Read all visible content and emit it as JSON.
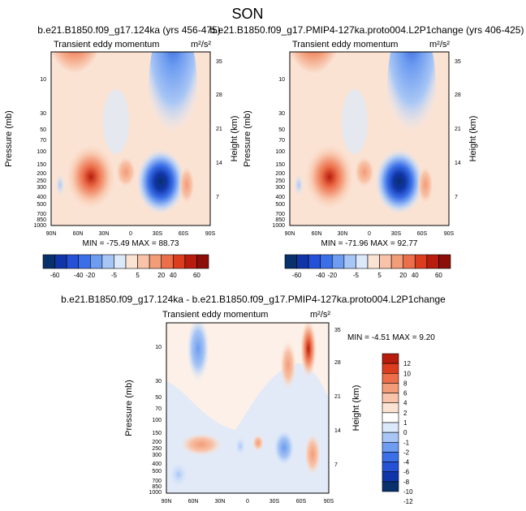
{
  "page_title": "SON",
  "colors": {
    "top_scale": [
      "#08306b",
      "#1035a8",
      "#2451d6",
      "#3a6fe8",
      "#6d9cf0",
      "#a8c6f5",
      "#dbe9fb",
      "#fbe3d4",
      "#f8c3a8",
      "#f39c78",
      "#ec6e4a",
      "#dc3d1f",
      "#b71c0c",
      "#8b0e08"
    ],
    "diff_scale": [
      "#08306b",
      "#1035a8",
      "#2451d6",
      "#3a6fe8",
      "#6d9cf0",
      "#a8c6f5",
      "#dbe9fb",
      "#ffffff",
      "#fbe3d4",
      "#f8c3a8",
      "#f39c78",
      "#ec6e4a",
      "#dc3d1f",
      "#b71c0c",
      "#8b0e08"
    ]
  },
  "chart_data": [
    {
      "type": "heatmap",
      "title": "b.e21.B1850.f09_g17.124ka (yrs 456-475)",
      "field_label": "Transient eddy momentum",
      "units": "m²/s²",
      "xlabel": "",
      "ylabel": "Pressure (mb)",
      "ylabel_right": "Height (km)",
      "x_ticks": [
        "90N",
        "60N",
        "30N",
        "0",
        "30S",
        "60S",
        "90S"
      ],
      "y_ticks": [
        "10",
        "30",
        "50",
        "70",
        "100",
        "150",
        "200",
        "250",
        "300",
        "400",
        "500",
        "700",
        "850",
        "1000"
      ],
      "y_ticks_right": [
        "35",
        "28",
        "21",
        "14",
        "7"
      ],
      "min_max_text": "MIN = -75.49  MAX = 88.73",
      "colorbar_levels": [
        "-60",
        "-40",
        "-20",
        "-5",
        "5",
        "20",
        "40",
        "60"
      ]
    },
    {
      "type": "heatmap",
      "title": "b.e21.B1850.f09_g17.PMIP4-127ka.proto004.L2P1change (yrs 406-425)",
      "field_label": "Transient eddy momentum",
      "units": "m²/s²",
      "xlabel": "",
      "ylabel": "Pressure (mb)",
      "ylabel_right": "Height (km)",
      "x_ticks": [
        "90N",
        "60N",
        "30N",
        "0",
        "30S",
        "60S",
        "90S"
      ],
      "y_ticks": [
        "10",
        "30",
        "50",
        "70",
        "100",
        "150",
        "200",
        "250",
        "300",
        "400",
        "500",
        "700",
        "850",
        "1000"
      ],
      "y_ticks_right": [
        "35",
        "28",
        "21",
        "14",
        "7"
      ],
      "min_max_text": "MIN = -71.96  MAX = 92.77",
      "colorbar_levels": [
        "-60",
        "-40",
        "-20",
        "-5",
        "5",
        "20",
        "40",
        "60"
      ]
    },
    {
      "type": "heatmap",
      "title": "b.e21.B1850.f09_g17.124ka - b.e21.B1850.f09_g17.PMIP4-127ka.proto004.L2P1change",
      "field_label": "Transient eddy momentum",
      "units": "m²/s²",
      "xlabel": "",
      "ylabel": "Pressure (mb)",
      "ylabel_right": "Height (km)",
      "x_ticks": [
        "90N",
        "60N",
        "30N",
        "0",
        "30S",
        "60S",
        "90S"
      ],
      "y_ticks": [
        "10",
        "30",
        "50",
        "70",
        "100",
        "150",
        "200",
        "250",
        "300",
        "400",
        "500",
        "700",
        "850",
        "1000"
      ],
      "y_ticks_right": [
        "35",
        "28",
        "21",
        "14",
        "7"
      ],
      "min_max_text": "MIN = -4.51  MAX =  9.20",
      "colorbar_levels": [
        "12",
        "10",
        "8",
        "6",
        "4",
        "2",
        "1",
        "0",
        "-1",
        "-2",
        "-4",
        "-6",
        "-8",
        "-10",
        "-12"
      ]
    }
  ]
}
